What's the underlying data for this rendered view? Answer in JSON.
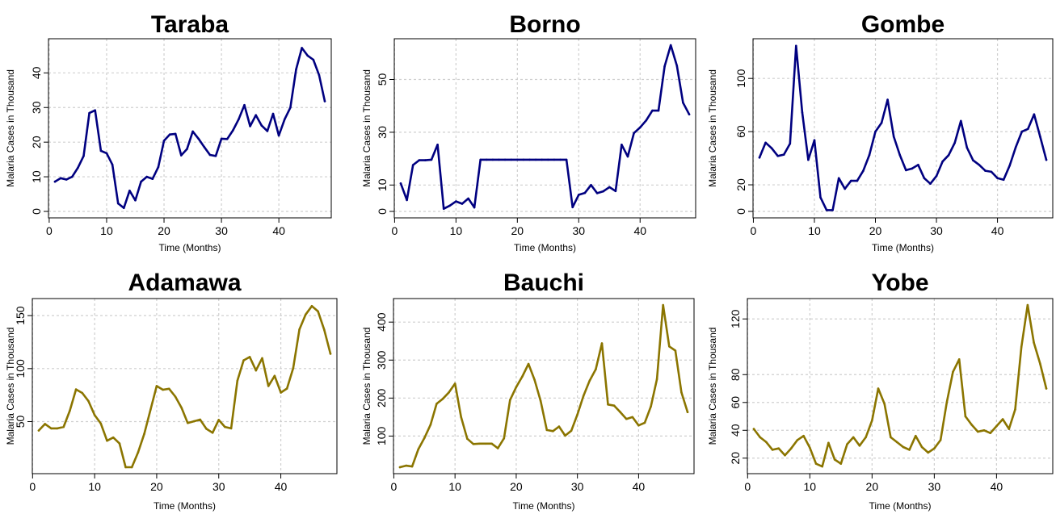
{
  "chart_data": [
    {
      "type": "line",
      "title": "Taraba",
      "xlabel": "Time (Months)",
      "ylabel": "Malaria Cases in Thousand",
      "xlim": [
        1,
        48
      ],
      "ylim": [
        0,
        48
      ],
      "xticks": [
        0,
        10,
        20,
        30,
        40
      ],
      "yticks": [
        0,
        10,
        20,
        30,
        40
      ],
      "grid": true,
      "color": "#000080",
      "x": [
        1,
        2,
        3,
        4,
        5,
        6,
        7,
        8,
        9,
        10,
        11,
        12,
        13,
        14,
        15,
        16,
        17,
        18,
        19,
        20,
        21,
        22,
        23,
        24,
        25,
        26,
        27,
        28,
        29,
        30,
        31,
        32,
        33,
        34,
        35,
        36,
        37,
        38,
        39,
        40,
        41,
        42,
        43,
        44,
        45,
        46,
        47,
        48
      ],
      "values": [
        8.6,
        9.6,
        9.2,
        10,
        12.6,
        16,
        28.4,
        29.2,
        17.5,
        16.8,
        13.5,
        2.3,
        1,
        6,
        3.2,
        8.6,
        10,
        9.4,
        12.8,
        20.4,
        22.2,
        22.4,
        16.2,
        18,
        23.1,
        21,
        18.6,
        16.3,
        16,
        21,
        20.9,
        23.4,
        26.6,
        30.7,
        24.6,
        27.8,
        24.8,
        23.2,
        28.2,
        21.9,
        26.6,
        30,
        41,
        47.2,
        45,
        43.8,
        39.4,
        31.8
      ]
    },
    {
      "type": "line",
      "title": "Borno",
      "xlabel": "Time (Months)",
      "ylabel": "Malaria Cases in Thousand",
      "xlim": [
        1,
        48
      ],
      "ylim": [
        0,
        63
      ],
      "xticks": [
        0,
        10,
        20,
        30,
        40
      ],
      "yticks": [
        0,
        10,
        30,
        50
      ],
      "grid": true,
      "color": "#000080",
      "x": [
        1,
        2,
        3,
        4,
        5,
        6,
        7,
        8,
        9,
        10,
        11,
        12,
        13,
        14,
        15,
        16,
        17,
        18,
        19,
        20,
        21,
        22,
        23,
        24,
        25,
        26,
        27,
        28,
        29,
        30,
        31,
        32,
        33,
        34,
        35,
        36,
        37,
        38,
        39,
        40,
        41,
        42,
        43,
        44,
        45,
        46,
        47,
        48
      ],
      "values": [
        10.6,
        4.3,
        17.6,
        19.4,
        19.4,
        19.6,
        25.3,
        1,
        2.2,
        3.8,
        2.9,
        4.9,
        1.5,
        19.6,
        19.6,
        19.6,
        19.6,
        19.6,
        19.6,
        19.6,
        19.6,
        19.6,
        19.6,
        19.6,
        19.6,
        19.6,
        19.6,
        19.6,
        1.6,
        6.3,
        7,
        10,
        6.9,
        7.6,
        9.2,
        7.7,
        25.3,
        20.8,
        29.7,
        31.8,
        34.5,
        38.2,
        38.2,
        55,
        63,
        55.2,
        41.2,
        36.8
      ]
    },
    {
      "type": "line",
      "title": "Gombe",
      "xlabel": "Time (Months)",
      "ylabel": "Malaria Cases in Thousand",
      "xlim": [
        1,
        48
      ],
      "ylim": [
        0,
        125
      ],
      "xticks": [
        0,
        10,
        20,
        30,
        40
      ],
      "yticks": [
        0,
        20,
        60,
        100
      ],
      "grid": true,
      "color": "#000080",
      "x": [
        1,
        2,
        3,
        4,
        5,
        6,
        7,
        8,
        9,
        10,
        11,
        12,
        13,
        14,
        15,
        16,
        17,
        18,
        19,
        20,
        21,
        22,
        23,
        24,
        25,
        26,
        27,
        28,
        29,
        30,
        31,
        32,
        33,
        34,
        35,
        36,
        37,
        38,
        39,
        40,
        41,
        42,
        43,
        44,
        45,
        46,
        47,
        48
      ],
      "values": [
        40.5,
        51.7,
        47.5,
        41.7,
        42.7,
        51,
        124.5,
        74.5,
        38.8,
        53.6,
        10.5,
        1,
        1,
        25,
        17,
        23,
        23,
        30.5,
        42.4,
        60,
        66.6,
        84,
        56.2,
        42.5,
        31,
        32.2,
        35,
        25,
        20.8,
        26.6,
        37.5,
        42.3,
        51.6,
        68,
        48,
        38.4,
        35,
        30.6,
        29.8,
        25,
        23.8,
        34.5,
        48.3,
        60,
        62,
        73,
        56.2,
        38.8
      ]
    },
    {
      "type": "line",
      "title": "Adamawa",
      "xlabel": "Time (Months)",
      "ylabel": "Malaria Cases in Thousand",
      "xlim": [
        1,
        48
      ],
      "ylim": [
        7,
        160
      ],
      "xticks": [
        0,
        10,
        20,
        30,
        40
      ],
      "yticks": [
        50,
        100,
        150
      ],
      "grid": true,
      "color": "#8b7500",
      "x": [
        1,
        2,
        3,
        4,
        5,
        6,
        7,
        8,
        9,
        10,
        11,
        12,
        13,
        14,
        15,
        16,
        17,
        18,
        19,
        20,
        21,
        22,
        23,
        24,
        25,
        26,
        27,
        28,
        29,
        30,
        31,
        32,
        33,
        34,
        35,
        36,
        37,
        38,
        39,
        40,
        41,
        42,
        43,
        44,
        45,
        46,
        47,
        48
      ],
      "values": [
        41.6,
        47.8,
        43.6,
        43.6,
        45,
        60.3,
        80.4,
        77,
        69.5,
        56.2,
        48.2,
        32,
        35,
        29.4,
        7,
        7,
        21,
        38.5,
        61.2,
        83.6,
        80.1,
        81,
        73.6,
        63,
        48.7,
        50.3,
        51.9,
        43.2,
        39.5,
        51.6,
        45,
        43.6,
        88.5,
        107.8,
        111,
        98.3,
        109.8,
        83.6,
        93.2,
        77.4,
        81.2,
        100.5,
        137,
        151,
        159,
        154,
        136.6,
        114
      ]
    },
    {
      "type": "line",
      "title": "Bauchi",
      "xlabel": "Time (Months)",
      "ylabel": "Malaria Cases in Thousand",
      "xlim": [
        1,
        48
      ],
      "ylim": [
        18,
        445
      ],
      "xticks": [
        0,
        10,
        20,
        30,
        40
      ],
      "yticks": [
        100,
        200,
        300,
        400
      ],
      "grid": true,
      "color": "#8b7500",
      "x": [
        1,
        2,
        3,
        4,
        5,
        6,
        7,
        8,
        9,
        10,
        11,
        12,
        13,
        14,
        15,
        16,
        17,
        18,
        19,
        20,
        21,
        22,
        23,
        24,
        25,
        26,
        27,
        28,
        29,
        30,
        31,
        32,
        33,
        34,
        35,
        36,
        37,
        38,
        39,
        40,
        41,
        42,
        43,
        44,
        45,
        46,
        47,
        48
      ],
      "values": [
        18,
        22,
        20,
        65,
        95,
        130,
        185,
        198,
        215,
        238,
        150,
        93,
        79,
        80,
        80,
        80,
        68,
        94,
        195,
        229,
        257,
        290,
        248,
        192,
        116,
        113,
        125,
        101,
        114,
        157,
        206,
        246,
        276,
        344,
        183,
        180,
        163,
        145,
        150,
        128,
        135,
        178,
        250,
        445,
        336,
        325,
        215,
        163
      ]
    },
    {
      "type": "line",
      "title": "Yobe",
      "xlabel": "Time (Months)",
      "ylabel": "Malaria Cases in Thousand",
      "xlim": [
        1,
        48
      ],
      "ylim": [
        13.5,
        130
      ],
      "xticks": [
        0,
        10,
        20,
        30,
        40
      ],
      "yticks": [
        20,
        40,
        60,
        80,
        120
      ],
      "grid": true,
      "color": "#8b7500",
      "x": [
        1,
        2,
        3,
        4,
        5,
        6,
        7,
        8,
        9,
        10,
        11,
        12,
        13,
        14,
        15,
        16,
        17,
        18,
        19,
        20,
        21,
        22,
        23,
        24,
        25,
        26,
        27,
        28,
        29,
        30,
        31,
        32,
        33,
        34,
        35,
        36,
        37,
        38,
        39,
        40,
        41,
        42,
        43,
        44,
        45,
        46,
        47,
        48
      ],
      "values": [
        41,
        35,
        31.5,
        26,
        27,
        22,
        27,
        33,
        36,
        27.5,
        16,
        14,
        31,
        19,
        16,
        30,
        35,
        29,
        35,
        47,
        70,
        59,
        35,
        31.5,
        28,
        26,
        36,
        28,
        24,
        27,
        33,
        60,
        82,
        91,
        50,
        44,
        39,
        40,
        38,
        43,
        48,
        41,
        55,
        100,
        130,
        103,
        88,
        70
      ]
    }
  ]
}
